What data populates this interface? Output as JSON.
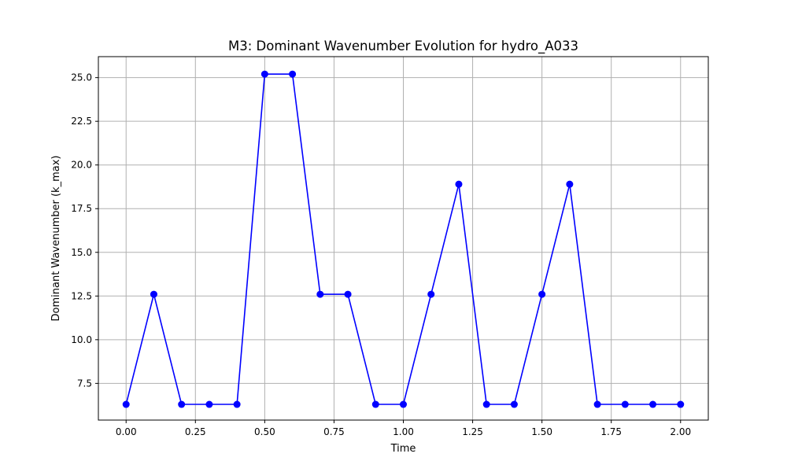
{
  "chart_data": {
    "type": "line",
    "title": "M3: Dominant Wavenumber Evolution for hydro_A033",
    "xlabel": "Time",
    "ylabel": "Dominant Wavenumber (k_max)",
    "xlim": [
      -0.1,
      2.1
    ],
    "ylim": [
      5.4,
      26.2
    ],
    "grid": true,
    "x_ticks": [
      0.0,
      0.25,
      0.5,
      0.75,
      1.0,
      1.25,
      1.5,
      1.75,
      2.0
    ],
    "x_tick_labels": [
      "0.00",
      "0.25",
      "0.50",
      "0.75",
      "1.00",
      "1.25",
      "1.50",
      "1.75",
      "2.00"
    ],
    "y_ticks": [
      7.5,
      10.0,
      12.5,
      15.0,
      17.5,
      20.0,
      22.5,
      25.0
    ],
    "y_tick_labels": [
      "7.5",
      "10.0",
      "12.5",
      "15.0",
      "17.5",
      "20.0",
      "22.5",
      "25.0"
    ],
    "series": [
      {
        "color": "#0000ff",
        "marker": "circle",
        "x": [
          0.0,
          0.1,
          0.2,
          0.3,
          0.4,
          0.5,
          0.6,
          0.7,
          0.8,
          0.9,
          1.0,
          1.1,
          1.2,
          1.3,
          1.4,
          1.5,
          1.6,
          1.7,
          1.8,
          1.9,
          2.0
        ],
        "y": [
          6.3,
          12.6,
          6.3,
          6.3,
          6.3,
          25.2,
          25.2,
          12.6,
          12.6,
          6.3,
          6.3,
          12.6,
          18.9,
          6.3,
          6.3,
          12.6,
          18.9,
          6.3,
          6.3,
          6.3,
          6.3
        ]
      }
    ]
  }
}
